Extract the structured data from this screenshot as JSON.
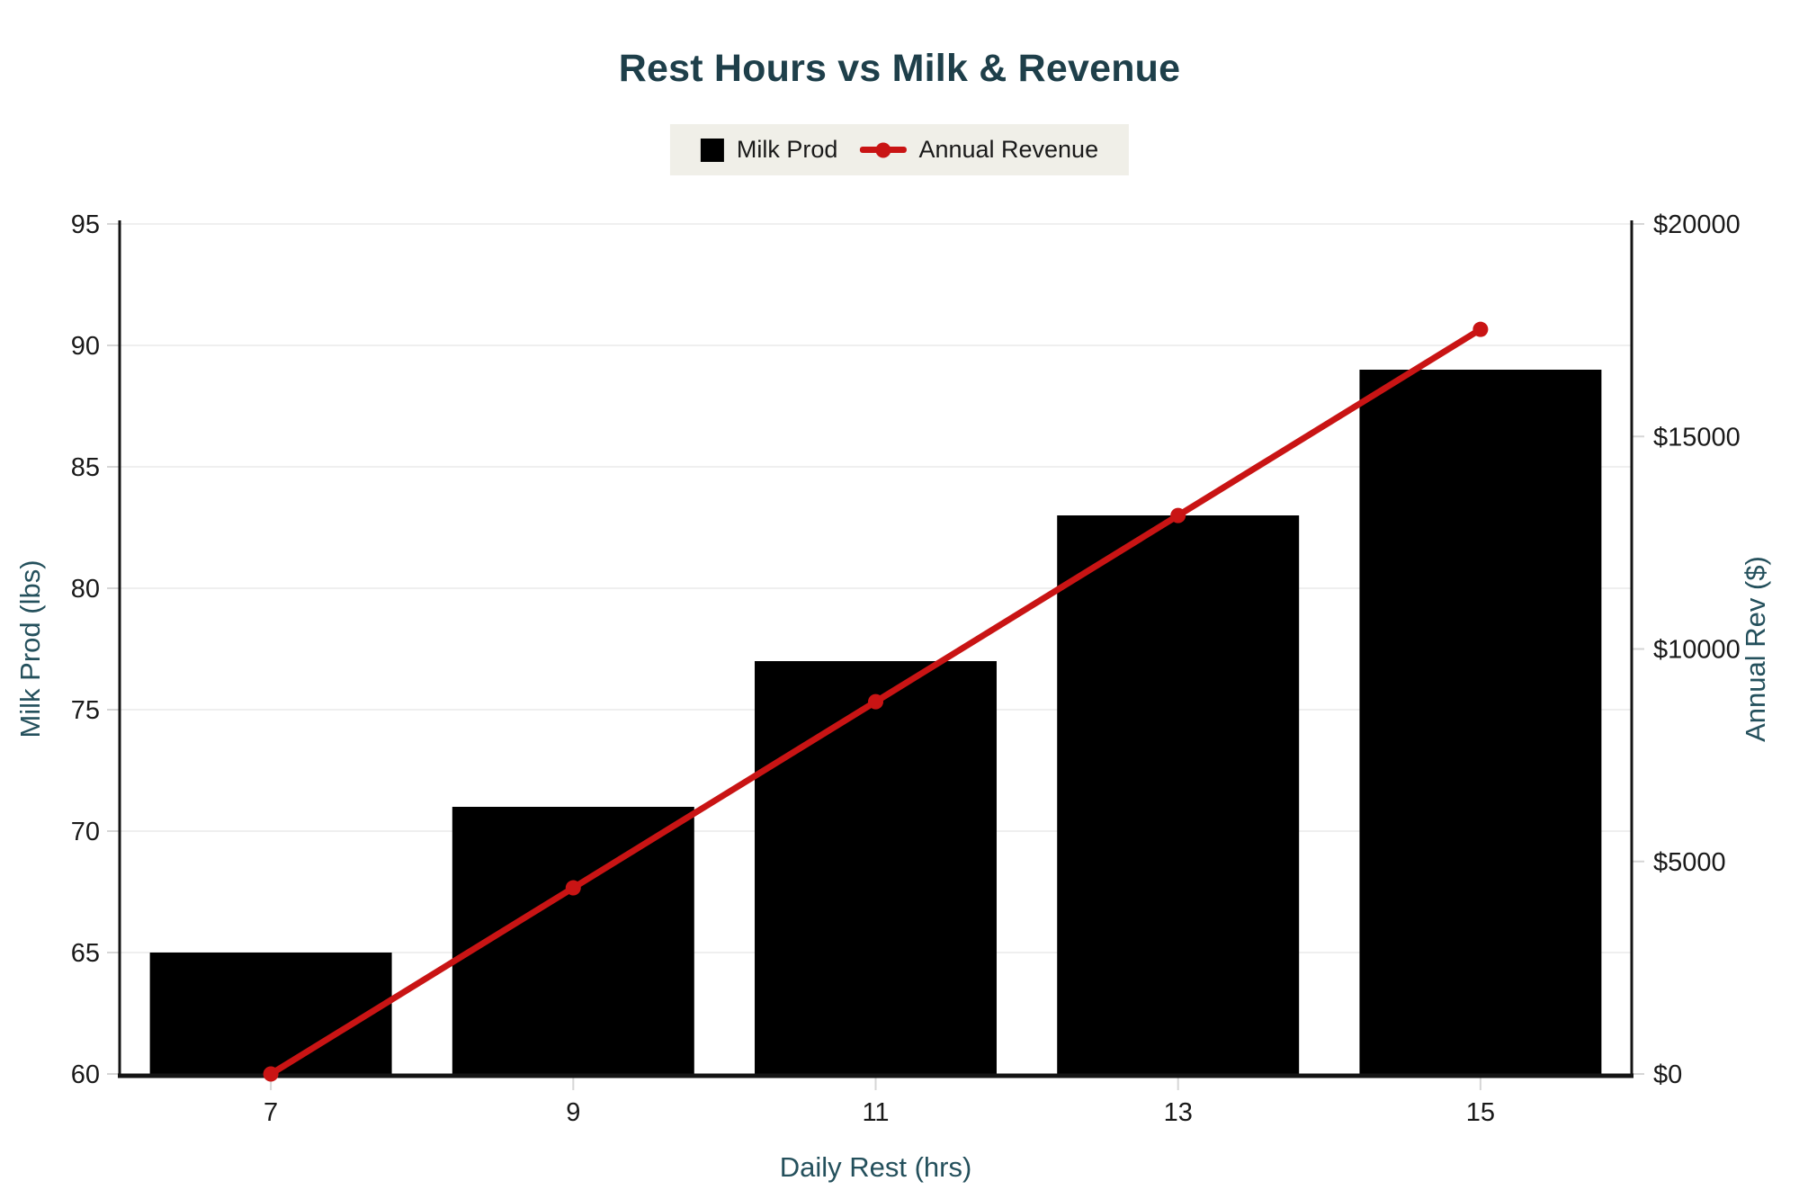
{
  "title": "Rest Hours vs Milk & Revenue",
  "colors": {
    "title": "#1e3f4a",
    "axis_title": "#24505c",
    "tick": "#1a1a1a",
    "legend_bg": "#f0efe8",
    "grid": "#efefef",
    "axis_line": "#141414",
    "tick_mark": "#d6d6d6"
  },
  "legend": {
    "items": [
      {
        "label": "Milk Prod",
        "swatch": "black-square"
      },
      {
        "label": "Annual Revenue",
        "swatch": "red-line-dot"
      }
    ]
  },
  "chart_data": {
    "type": "combo-bar-line",
    "title": "Rest Hours vs Milk & Revenue",
    "x": [
      7,
      9,
      11,
      13,
      15
    ],
    "x_tick_labels": [
      "7",
      "9",
      "11",
      "13",
      "15"
    ],
    "xlabel": "Daily Rest (hrs)",
    "series": [
      {
        "name": "Milk Prod",
        "type": "bar",
        "axis": "left",
        "color": "#000000",
        "values": [
          65,
          71,
          77,
          83,
          89
        ]
      },
      {
        "name": "Annual Revenue",
        "type": "line",
        "axis": "right",
        "color": "#c91414",
        "values": [
          0,
          4380,
          8760,
          13140,
          17520
        ]
      }
    ],
    "left_axis": {
      "label": "Milk Prod (lbs)",
      "min": 60,
      "max": 95,
      "step": 5,
      "tick_labels": [
        "60",
        "65",
        "70",
        "75",
        "80",
        "85",
        "90",
        "95"
      ]
    },
    "right_axis": {
      "label": "Annual Rev ($)",
      "min": 0,
      "max": 20000,
      "step": 5000,
      "tick_labels": [
        "$0",
        "$5000",
        "$10000",
        "$15000",
        "$20000"
      ]
    },
    "grid": "horizontal-light",
    "legend_position": "top-center",
    "bar_width_ratio": 0.8
  }
}
